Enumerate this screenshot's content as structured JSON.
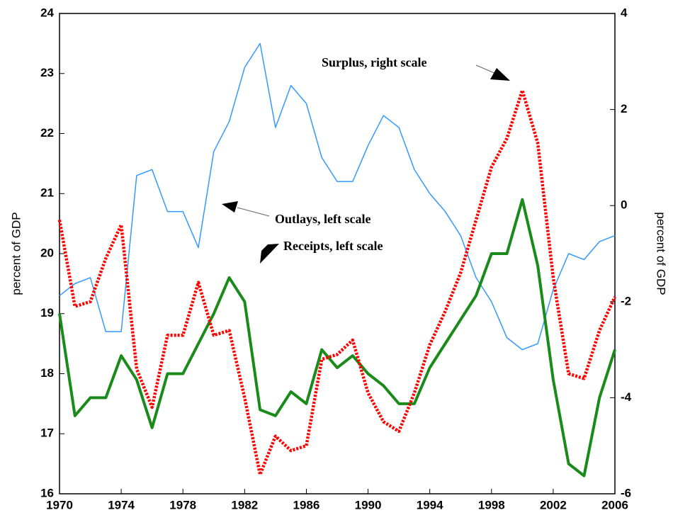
{
  "chart_data": {
    "type": "line",
    "x": [
      1970,
      1971,
      1972,
      1973,
      1974,
      1975,
      1976,
      1977,
      1978,
      1979,
      1980,
      1981,
      1982,
      1983,
      1984,
      1985,
      1986,
      1987,
      1988,
      1989,
      1990,
      1991,
      1992,
      1993,
      1994,
      1995,
      1996,
      1997,
      1998,
      1999,
      2000,
      2001,
      2002,
      2003,
      2004,
      2005,
      2006
    ],
    "series": [
      {
        "name": "Outlays, left scale",
        "color": "#3399ff",
        "line_style": "solid",
        "axis": "y",
        "values": [
          19.3,
          19.5,
          19.6,
          18.7,
          18.7,
          21.3,
          21.4,
          20.7,
          20.7,
          20.1,
          21.7,
          22.2,
          23.1,
          23.5,
          22.1,
          22.8,
          22.5,
          21.6,
          21.2,
          21.2,
          21.8,
          22.3,
          22.1,
          21.4,
          21.0,
          20.7,
          20.3,
          19.6,
          19.2,
          18.6,
          18.4,
          18.5,
          19.4,
          20.0,
          19.9,
          20.2,
          20.3
        ]
      },
      {
        "name": "Receipts, left scale",
        "color": "#1a8a1a",
        "line_style": "solid",
        "axis": "y",
        "values": [
          19.0,
          17.3,
          17.6,
          17.6,
          18.3,
          17.9,
          17.1,
          18.0,
          18.0,
          18.5,
          19.0,
          19.6,
          19.2,
          17.4,
          17.3,
          17.7,
          17.5,
          18.4,
          18.1,
          18.3,
          18.0,
          17.8,
          17.5,
          17.5,
          18.1,
          18.5,
          18.9,
          19.3,
          20.0,
          20.0,
          20.9,
          19.8,
          17.9,
          16.5,
          16.3,
          17.6,
          18.4
        ]
      },
      {
        "name": "Surplus, right scale",
        "color": "#ff0000",
        "line_style": "dotted",
        "axis": "y2",
        "values": [
          -0.3,
          -2.1,
          -2.0,
          -1.1,
          -0.4,
          -3.4,
          -4.2,
          -2.7,
          -2.7,
          -1.6,
          -2.7,
          -2.6,
          -4.0,
          -5.6,
          -4.8,
          -5.1,
          -5.0,
          -3.2,
          -3.1,
          -2.8,
          -3.9,
          -4.5,
          -4.7,
          -3.9,
          -2.9,
          -2.2,
          -1.4,
          -0.3,
          0.8,
          1.4,
          2.4,
          1.3,
          -1.5,
          -3.5,
          -3.6,
          -2.6,
          -1.9
        ]
      }
    ],
    "xlim": [
      1970,
      2006
    ],
    "xticks": [
      1970,
      1974,
      1978,
      1982,
      1986,
      1990,
      1994,
      1998,
      2002,
      2006
    ],
    "ylim": [
      16,
      24
    ],
    "yticks": [
      16,
      17,
      18,
      19,
      20,
      21,
      22,
      23,
      24
    ],
    "y2lim": [
      -6,
      4
    ],
    "y2ticks": [
      -6,
      -4,
      -2,
      0,
      2,
      4
    ],
    "ylabel": "percent of GDP",
    "y2label": "percent of GDP"
  }
}
